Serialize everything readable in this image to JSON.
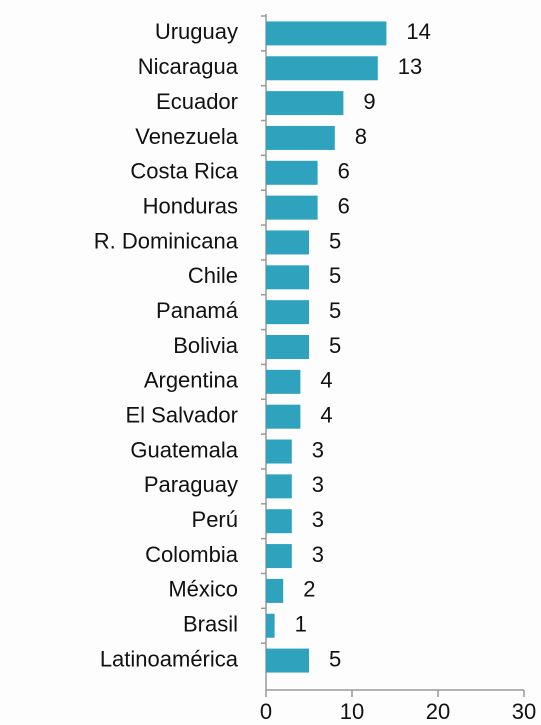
{
  "chart_data": {
    "type": "hbar",
    "categories": [
      "Uruguay",
      "Nicaragua",
      "Ecuador",
      "Venezuela",
      "Costa Rica",
      "Honduras",
      "R. Dominicana",
      "Chile",
      "Panamá",
      "Bolivia",
      "Argentina",
      "El Salvador",
      "Guatemala",
      "Paraguay",
      "Perú",
      "Colombia",
      "México",
      "Brasil",
      "Latinoamérica"
    ],
    "values": [
      14,
      13,
      9,
      8,
      6,
      6,
      5,
      5,
      5,
      5,
      4,
      4,
      3,
      3,
      3,
      3,
      2,
      1,
      5
    ],
    "color": "#2fa3bd",
    "xlim": [
      0,
      30
    ],
    "xticks": [
      0,
      10,
      20,
      30
    ]
  }
}
